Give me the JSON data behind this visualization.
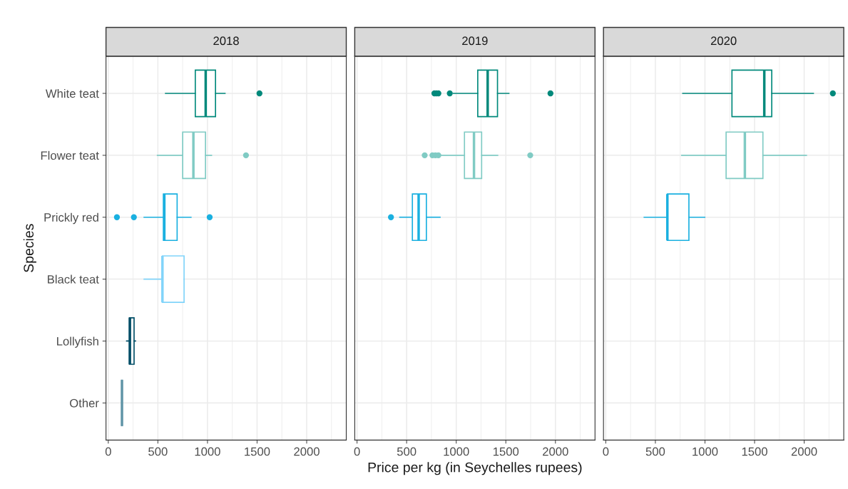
{
  "chart_data": [
    {
      "type": "box",
      "title": "2018",
      "ylabel": "Species",
      "categories": [
        "White teat",
        "Flower teat",
        "Prickly red",
        "Black teat",
        "Lollyfish",
        "Other"
      ],
      "boxes": [
        {
          "low": 577,
          "q1": 877,
          "median": 982,
          "q3": 1081,
          "high": 1177,
          "outliers": [
            1524
          ]
        },
        {
          "low": 495,
          "q1": 750,
          "median": 858,
          "q3": 980,
          "high": 1041,
          "outliers": [
            1388
          ]
        },
        {
          "low": 361,
          "q1": 556,
          "median": 565,
          "q3": 694,
          "high": 834,
          "outliers": [
            87,
            258,
            1022
          ]
        },
        {
          "low": 361,
          "q1": 546,
          "median": 546,
          "q3": 764,
          "high": 764
        },
        {
          "low": 185,
          "q1": 213,
          "median": 218,
          "q3": 260,
          "high": 274
        },
        {
          "low": 138,
          "q1": 138,
          "median": 138,
          "q3": 138,
          "high": 138
        }
      ],
      "colors": [
        "#00897b",
        "#80cbc4",
        "#1ab0e0",
        "#81d4fa",
        "#004d66",
        "#5f94a6"
      ],
      "orientation": "horizontal",
      "xlim": [
        -23,
        2399
      ],
      "xticks": [
        0,
        500,
        1000,
        1500,
        2000
      ],
      "grid": true
    },
    {
      "type": "box",
      "title": "2019",
      "xlabel": "Price per kg (in Seychelles rupees)",
      "categories": [
        null,
        null,
        null,
        null,
        null,
        null
      ],
      "boxes": [
        {
          "low": 970,
          "q1": 1217,
          "median": 1317,
          "q3": 1416,
          "high": 1531,
          "outliers": [
            780,
            800,
            820,
            935,
            1950
          ]
        },
        {
          "low": 846,
          "q1": 1083,
          "median": 1179,
          "q3": 1256,
          "high": 1418,
          "outliers": [
            682,
            760,
            790,
            820,
            1746
          ]
        },
        {
          "low": 431,
          "q1": 558,
          "median": 621,
          "q3": 699,
          "high": 837,
          "outliers": [
            342
          ]
        },
        null,
        null,
        null
      ],
      "colors": [
        "#00897b",
        "#80cbc4",
        "#1ab0e0",
        "#81d4fa",
        "#004d66",
        "#5f94a6"
      ],
      "orientation": "horizontal",
      "xlim": [
        -23,
        2399
      ],
      "xticks": [
        0,
        500,
        1000,
        1500,
        2000
      ],
      "grid": true,
      "tick_labels": "x"
    },
    {
      "type": "box",
      "title": "2020",
      "categories": [
        null,
        null,
        null,
        null,
        null,
        null
      ],
      "boxes": [
        {
          "low": 776,
          "q1": 1272,
          "median": 1598,
          "q3": 1673,
          "high": 2093,
          "outliers": [
            2289
          ]
        },
        {
          "low": 765,
          "q1": 1213,
          "median": 1402,
          "q3": 1584,
          "high": 2023
        },
        {
          "low": 387,
          "q1": 621,
          "median": 621,
          "q3": 838,
          "high": 998
        },
        null,
        null,
        null
      ],
      "colors": [
        "#00897b",
        "#80cbc4",
        "#1ab0e0",
        "#81d4fa",
        "#004d66",
        "#5f94a6"
      ],
      "orientation": "horizontal",
      "xlim": [
        -23,
        2399
      ],
      "xticks": [
        0,
        500,
        1000,
        1500,
        2000
      ],
      "grid": true,
      "tick_labels": "x"
    }
  ]
}
